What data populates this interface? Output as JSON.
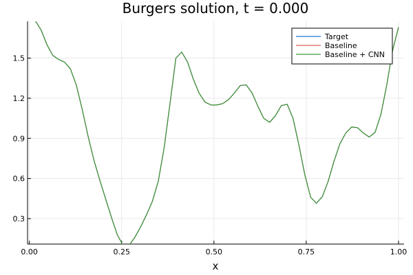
{
  "chart_data": {
    "type": "line",
    "title": "Burgers solution, t = 0.000",
    "xlabel": "x",
    "ylabel": "",
    "xlim": [
      -0.005,
      1.015
    ],
    "ylim": [
      0.11,
      1.775
    ],
    "xticks": [
      0.0,
      0.25,
      0.5,
      0.75,
      1.0
    ],
    "xtick_labels": [
      "0.00",
      "0.25",
      "0.50",
      "0.75",
      "1.00"
    ],
    "yticks": [
      0.3,
      0.6,
      0.9,
      1.2,
      1.5
    ],
    "ytick_labels": [
      "0.3",
      "0.6",
      "0.9",
      "1.2",
      "1.5"
    ],
    "grid": true,
    "legend_position": "top-right",
    "x": [
      0.0,
      0.015873,
      0.031746,
      0.047619,
      0.063492,
      0.079365,
      0.095238,
      0.111111,
      0.126984,
      0.142857,
      0.15873,
      0.174603,
      0.190476,
      0.206349,
      0.222222,
      0.238095,
      0.253968,
      0.269841,
      0.285714,
      0.301587,
      0.31746,
      0.333333,
      0.349206,
      0.365079,
      0.380952,
      0.396825,
      0.412698,
      0.428571,
      0.444444,
      0.460317,
      0.47619,
      0.492063,
      0.507937,
      0.52381,
      0.539683,
      0.555556,
      0.571429,
      0.587302,
      0.603175,
      0.619048,
      0.634921,
      0.650794,
      0.666667,
      0.68254,
      0.698413,
      0.714286,
      0.730159,
      0.746032,
      0.761905,
      0.777778,
      0.793651,
      0.809524,
      0.825397,
      0.84127,
      0.857143,
      0.873016,
      0.888889,
      0.904762,
      0.920635,
      0.936508,
      0.952381,
      0.968254,
      0.984127,
      1.0
    ],
    "series": [
      {
        "name": "Target",
        "color": "#1f77d8",
        "values": [
          1.85,
          1.78,
          1.71,
          1.6,
          1.52,
          1.49,
          1.47,
          1.42,
          1.3,
          1.12,
          0.92,
          0.74,
          0.59,
          0.45,
          0.31,
          0.18,
          0.1,
          0.1,
          0.16,
          0.24,
          0.33,
          0.43,
          0.58,
          0.83,
          1.16,
          1.5,
          1.545,
          1.47,
          1.34,
          1.235,
          1.17,
          1.15,
          1.15,
          1.16,
          1.19,
          1.24,
          1.295,
          1.3,
          1.24,
          1.14,
          1.05,
          1.02,
          1.07,
          1.145,
          1.155,
          1.05,
          0.85,
          0.63,
          0.46,
          0.415,
          0.465,
          0.58,
          0.73,
          0.86,
          0.94,
          0.985,
          0.98,
          0.94,
          0.91,
          0.945,
          1.08,
          1.3,
          1.56,
          1.73
        ]
      },
      {
        "name": "Baseline",
        "color": "#e0605a",
        "values": [
          1.85,
          1.78,
          1.71,
          1.6,
          1.52,
          1.49,
          1.47,
          1.42,
          1.3,
          1.12,
          0.92,
          0.74,
          0.59,
          0.45,
          0.31,
          0.18,
          0.1,
          0.1,
          0.16,
          0.24,
          0.33,
          0.43,
          0.58,
          0.83,
          1.16,
          1.5,
          1.545,
          1.47,
          1.34,
          1.235,
          1.17,
          1.15,
          1.15,
          1.16,
          1.19,
          1.24,
          1.295,
          1.3,
          1.24,
          1.14,
          1.05,
          1.02,
          1.07,
          1.145,
          1.155,
          1.05,
          0.85,
          0.63,
          0.46,
          0.415,
          0.465,
          0.58,
          0.73,
          0.86,
          0.94,
          0.985,
          0.98,
          0.94,
          0.91,
          0.945,
          1.08,
          1.3,
          1.56,
          1.73
        ]
      },
      {
        "name": "Baseline + CNN",
        "color": "#3b9a3b",
        "values": [
          1.85,
          1.78,
          1.71,
          1.6,
          1.52,
          1.49,
          1.47,
          1.42,
          1.3,
          1.12,
          0.92,
          0.74,
          0.59,
          0.45,
          0.31,
          0.18,
          0.1,
          0.1,
          0.16,
          0.24,
          0.33,
          0.43,
          0.58,
          0.83,
          1.16,
          1.5,
          1.545,
          1.47,
          1.34,
          1.235,
          1.17,
          1.15,
          1.15,
          1.16,
          1.19,
          1.24,
          1.295,
          1.3,
          1.24,
          1.14,
          1.05,
          1.02,
          1.07,
          1.145,
          1.155,
          1.05,
          0.85,
          0.63,
          0.46,
          0.415,
          0.465,
          0.58,
          0.73,
          0.86,
          0.94,
          0.985,
          0.98,
          0.94,
          0.91,
          0.945,
          1.08,
          1.3,
          1.56,
          1.73
        ]
      }
    ]
  }
}
